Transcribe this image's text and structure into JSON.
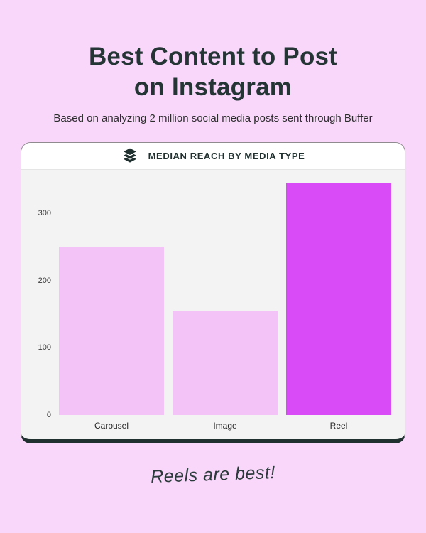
{
  "page": {
    "title_line1": "Best Content to Post",
    "title_line2": "on Instagram",
    "subtitle": "Based on analyzing 2 million social media posts sent through Buffer",
    "note": "Reels are best!"
  },
  "card": {
    "header": {
      "icon": "buffer-logo-icon",
      "label": "MEDIAN REACH BY MEDIA TYPE"
    }
  },
  "colors": {
    "page_background": "#f8d7fb",
    "card_background": "#f4f3f3",
    "card_header_background": "#ffffff",
    "card_border": "#8f8b8f",
    "card_bottom_edge": "#20302f",
    "title_text": "#253434",
    "bar_light": "#f3c3f8",
    "bar_accent": "#d94bf6"
  },
  "chart_data": {
    "type": "bar",
    "title": "MEDIAN REACH BY MEDIA TYPE",
    "categories": [
      "Carousel",
      "Image",
      "Reel"
    ],
    "values": [
      250,
      155,
      345
    ],
    "bar_colors": [
      "#f3c3f8",
      "#f3c3f8",
      "#d94bf6"
    ],
    "yticks": [
      0,
      100,
      200,
      300
    ],
    "ylim": [
      0,
      365
    ],
    "xlabel": "",
    "ylabel": "",
    "grid": false,
    "legend": false
  }
}
